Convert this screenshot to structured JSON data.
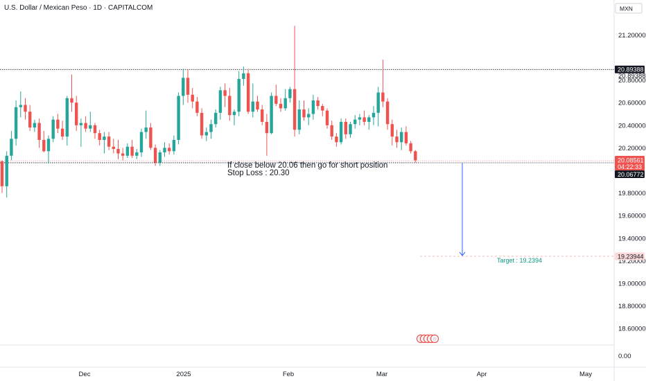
{
  "header": {
    "title": "U.S. Dollar / Mexican Peso · 1D · CAPITALCOM",
    "currency": "MXN"
  },
  "colors": {
    "up": "#26a69a",
    "down": "#ef5350",
    "arrow": "#2962ff",
    "text": "#131722",
    "axis_text": "#131722",
    "grid": "#e0e3eb"
  },
  "chart_data": {
    "type": "candlestick",
    "title": "U.S. Dollar / Mexican Peso · 1D · CAPITALCOM",
    "ylim": [
      18.45,
      21.3
    ],
    "y_ticks": [
      "21.20000",
      "20.80000",
      "20.60000",
      "20.40000",
      "20.20000",
      "19.80000",
      "19.60000",
      "19.40000",
      "19.20000",
      "19.00000",
      "18.80000",
      "18.60000"
    ],
    "x_ticks": [
      "Dec",
      "2025",
      "Feb",
      "Mar",
      "Apr",
      "May"
    ],
    "volume_axis_label": "0.00",
    "price_labels": {
      "resistance": "20.89388",
      "current_price": "20.08561",
      "countdown": "04:22:33",
      "support": "20.06772",
      "target": "19.23944"
    },
    "levels": {
      "resistance": 20.89388,
      "support": 20.06772,
      "target": 19.23944
    },
    "annotations": {
      "line1": "If close below 20.06 then go for short position",
      "line2": "Stop Loss : 20.30",
      "target": "Target : 19.2394"
    },
    "candles": [
      {
        "o": 20.08,
        "h": 20.09,
        "l": 19.8,
        "c": 19.86
      },
      {
        "o": 19.86,
        "h": 20.17,
        "l": 19.76,
        "c": 20.13
      },
      {
        "o": 20.13,
        "h": 20.35,
        "l": 20.09,
        "c": 20.28
      },
      {
        "o": 20.28,
        "h": 20.62,
        "l": 20.22,
        "c": 20.56
      },
      {
        "o": 20.56,
        "h": 20.7,
        "l": 20.47,
        "c": 20.58
      },
      {
        "o": 20.58,
        "h": 20.64,
        "l": 20.45,
        "c": 20.52
      },
      {
        "o": 20.52,
        "h": 20.58,
        "l": 20.35,
        "c": 20.38
      },
      {
        "o": 20.38,
        "h": 20.45,
        "l": 20.34,
        "c": 20.42
      },
      {
        "o": 20.42,
        "h": 20.46,
        "l": 20.2,
        "c": 20.27
      },
      {
        "o": 20.27,
        "h": 20.35,
        "l": 20.16,
        "c": 20.17
      },
      {
        "o": 20.17,
        "h": 20.31,
        "l": 20.06,
        "c": 20.28
      },
      {
        "o": 20.28,
        "h": 20.48,
        "l": 20.25,
        "c": 20.45
      },
      {
        "o": 20.45,
        "h": 20.5,
        "l": 20.33,
        "c": 20.37
      },
      {
        "o": 20.37,
        "h": 20.44,
        "l": 20.27,
        "c": 20.3
      },
      {
        "o": 20.3,
        "h": 20.66,
        "l": 20.22,
        "c": 20.64
      },
      {
        "o": 20.64,
        "h": 20.85,
        "l": 20.52,
        "c": 20.6
      },
      {
        "o": 20.6,
        "h": 20.66,
        "l": 20.35,
        "c": 20.4
      },
      {
        "o": 20.4,
        "h": 20.46,
        "l": 20.21,
        "c": 20.42
      },
      {
        "o": 20.42,
        "h": 20.48,
        "l": 20.34,
        "c": 20.37
      },
      {
        "o": 20.37,
        "h": 20.52,
        "l": 20.34,
        "c": 20.4
      },
      {
        "o": 20.4,
        "h": 20.42,
        "l": 20.28,
        "c": 20.33
      },
      {
        "o": 20.33,
        "h": 20.36,
        "l": 20.22,
        "c": 20.27
      },
      {
        "o": 20.27,
        "h": 20.34,
        "l": 20.15,
        "c": 20.3
      },
      {
        "o": 20.3,
        "h": 20.34,
        "l": 20.18,
        "c": 20.21
      },
      {
        "o": 20.21,
        "h": 20.28,
        "l": 20.15,
        "c": 20.19
      },
      {
        "o": 20.19,
        "h": 20.27,
        "l": 20.1,
        "c": 20.15
      },
      {
        "o": 20.15,
        "h": 20.2,
        "l": 20.09,
        "c": 20.13
      },
      {
        "o": 20.13,
        "h": 20.24,
        "l": 20.11,
        "c": 20.21
      },
      {
        "o": 20.21,
        "h": 20.27,
        "l": 20.11,
        "c": 20.13
      },
      {
        "o": 20.13,
        "h": 20.19,
        "l": 20.1,
        "c": 20.16
      },
      {
        "o": 20.16,
        "h": 20.37,
        "l": 20.12,
        "c": 20.34
      },
      {
        "o": 20.34,
        "h": 20.53,
        "l": 20.28,
        "c": 20.38
      },
      {
        "o": 20.38,
        "h": 20.42,
        "l": 20.18,
        "c": 20.2
      },
      {
        "o": 20.2,
        "h": 20.23,
        "l": 20.04,
        "c": 20.07
      },
      {
        "o": 20.07,
        "h": 20.18,
        "l": 20.04,
        "c": 20.16
      },
      {
        "o": 20.16,
        "h": 20.25,
        "l": 20.12,
        "c": 20.2
      },
      {
        "o": 20.2,
        "h": 20.24,
        "l": 20.14,
        "c": 20.17
      },
      {
        "o": 20.17,
        "h": 20.31,
        "l": 20.14,
        "c": 20.27
      },
      {
        "o": 20.27,
        "h": 20.69,
        "l": 20.23,
        "c": 20.66
      },
      {
        "o": 20.66,
        "h": 20.9,
        "l": 20.58,
        "c": 20.82
      },
      {
        "o": 20.82,
        "h": 20.89,
        "l": 20.6,
        "c": 20.67
      },
      {
        "o": 20.67,
        "h": 20.73,
        "l": 20.55,
        "c": 20.61
      },
      {
        "o": 20.61,
        "h": 20.65,
        "l": 20.48,
        "c": 20.51
      },
      {
        "o": 20.51,
        "h": 20.55,
        "l": 20.28,
        "c": 20.31
      },
      {
        "o": 20.31,
        "h": 20.38,
        "l": 20.26,
        "c": 20.34
      },
      {
        "o": 20.34,
        "h": 20.45,
        "l": 20.28,
        "c": 20.41
      },
      {
        "o": 20.41,
        "h": 20.54,
        "l": 20.38,
        "c": 20.51
      },
      {
        "o": 20.51,
        "h": 20.74,
        "l": 20.45,
        "c": 20.71
      },
      {
        "o": 20.71,
        "h": 20.77,
        "l": 20.56,
        "c": 20.66
      },
      {
        "o": 20.66,
        "h": 20.73,
        "l": 20.44,
        "c": 20.49
      },
      {
        "o": 20.49,
        "h": 20.54,
        "l": 20.4,
        "c": 20.52
      },
      {
        "o": 20.52,
        "h": 20.88,
        "l": 20.48,
        "c": 20.81
      },
      {
        "o": 20.81,
        "h": 20.92,
        "l": 20.75,
        "c": 20.86
      },
      {
        "o": 20.86,
        "h": 20.9,
        "l": 20.5,
        "c": 20.52
      },
      {
        "o": 20.52,
        "h": 20.77,
        "l": 20.47,
        "c": 20.61
      },
      {
        "o": 20.61,
        "h": 20.66,
        "l": 20.52,
        "c": 20.54
      },
      {
        "o": 20.54,
        "h": 20.58,
        "l": 20.4,
        "c": 20.43
      },
      {
        "o": 20.43,
        "h": 20.5,
        "l": 20.13,
        "c": 20.33
      },
      {
        "o": 20.33,
        "h": 20.69,
        "l": 20.32,
        "c": 20.66
      },
      {
        "o": 20.66,
        "h": 20.76,
        "l": 20.57,
        "c": 20.59
      },
      {
        "o": 20.59,
        "h": 20.64,
        "l": 20.52,
        "c": 20.55
      },
      {
        "o": 20.55,
        "h": 20.72,
        "l": 20.53,
        "c": 20.64
      },
      {
        "o": 20.64,
        "h": 20.74,
        "l": 20.6,
        "c": 20.72
      },
      {
        "o": 20.72,
        "h": 21.28,
        "l": 20.3,
        "c": 20.36
      },
      {
        "o": 20.36,
        "h": 20.62,
        "l": 20.32,
        "c": 20.54
      },
      {
        "o": 20.54,
        "h": 20.62,
        "l": 20.44,
        "c": 20.47
      },
      {
        "o": 20.47,
        "h": 20.55,
        "l": 20.4,
        "c": 20.5
      },
      {
        "o": 20.5,
        "h": 20.67,
        "l": 20.45,
        "c": 20.62
      },
      {
        "o": 20.62,
        "h": 20.65,
        "l": 20.54,
        "c": 20.57
      },
      {
        "o": 20.57,
        "h": 20.59,
        "l": 20.48,
        "c": 20.53
      },
      {
        "o": 20.53,
        "h": 20.55,
        "l": 20.37,
        "c": 20.4
      },
      {
        "o": 20.4,
        "h": 20.44,
        "l": 20.27,
        "c": 20.3
      },
      {
        "o": 20.3,
        "h": 20.33,
        "l": 20.21,
        "c": 20.25
      },
      {
        "o": 20.25,
        "h": 20.46,
        "l": 20.23,
        "c": 20.43
      },
      {
        "o": 20.43,
        "h": 20.46,
        "l": 20.28,
        "c": 20.32
      },
      {
        "o": 20.32,
        "h": 20.43,
        "l": 20.29,
        "c": 20.41
      },
      {
        "o": 20.41,
        "h": 20.49,
        "l": 20.37,
        "c": 20.45
      },
      {
        "o": 20.45,
        "h": 20.5,
        "l": 20.4,
        "c": 20.47
      },
      {
        "o": 20.47,
        "h": 20.53,
        "l": 20.4,
        "c": 20.43
      },
      {
        "o": 20.43,
        "h": 20.49,
        "l": 20.36,
        "c": 20.47
      },
      {
        "o": 20.47,
        "h": 20.57,
        "l": 20.4,
        "c": 20.51
      },
      {
        "o": 20.51,
        "h": 20.74,
        "l": 20.39,
        "c": 20.69
      },
      {
        "o": 20.69,
        "h": 20.98,
        "l": 20.56,
        "c": 20.61
      },
      {
        "o": 20.61,
        "h": 20.64,
        "l": 20.36,
        "c": 20.41
      },
      {
        "o": 20.41,
        "h": 20.45,
        "l": 20.22,
        "c": 20.3
      },
      {
        "o": 20.3,
        "h": 20.36,
        "l": 20.2,
        "c": 20.25
      },
      {
        "o": 20.25,
        "h": 20.38,
        "l": 20.18,
        "c": 20.34
      },
      {
        "o": 20.34,
        "h": 20.39,
        "l": 20.22,
        "c": 20.24
      },
      {
        "o": 20.24,
        "h": 20.26,
        "l": 20.15,
        "c": 20.17
      },
      {
        "o": 20.17,
        "h": 20.18,
        "l": 20.07,
        "c": 20.09
      }
    ]
  }
}
